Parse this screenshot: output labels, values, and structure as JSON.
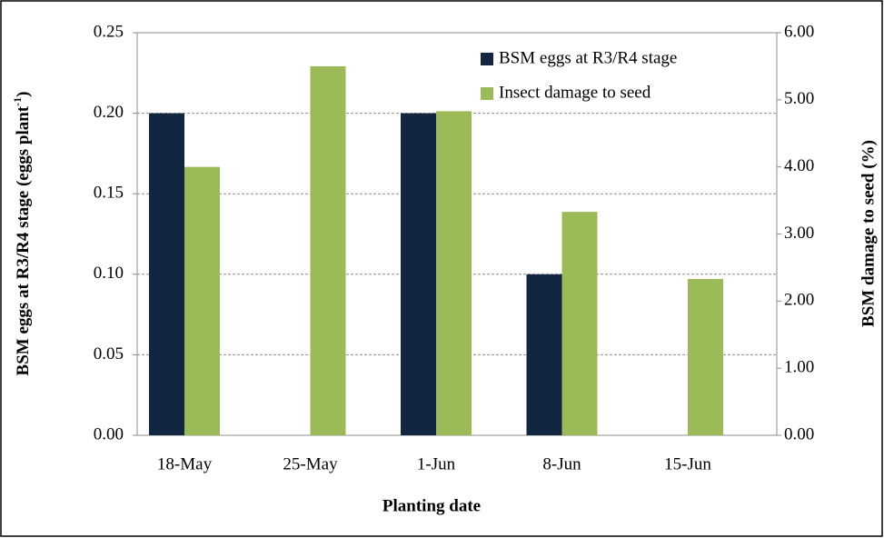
{
  "chart_data": {
    "type": "bar",
    "x_label": "Planting date",
    "y_label": "BSM eggs at R3/R4 stage (eggs plant",
    "y_label_sup": "-1",
    "y_label_end": ")",
    "y2_label": "BSM damage to seed (%)",
    "categories": [
      "18-May",
      "25-May",
      "1-Jun",
      "8-Jun",
      "15-Jun"
    ],
    "series": [
      {
        "name": "BSM eggs at R3/R4 stage",
        "color": "#132641",
        "values": [
          0.2,
          0,
          0.2,
          0.1,
          0
        ]
      },
      {
        "name": "Insect damage to seed",
        "color": "#9bbb59",
        "axis": "y2",
        "values": [
          4.0,
          5.5,
          4.83,
          3.33,
          2.33
        ]
      }
    ],
    "ylim": [
      0,
      0.25
    ],
    "yticks": [
      {
        "value": 0,
        "label": "0.00"
      },
      {
        "value": 0.05,
        "label": "0.05"
      },
      {
        "value": 0.1,
        "label": "0.10"
      },
      {
        "value": 0.15,
        "label": "0.15"
      },
      {
        "value": 0.2,
        "label": "0.20"
      },
      {
        "value": 0.25,
        "label": "0.25"
      }
    ],
    "y2lim": [
      0,
      6
    ],
    "y2ticks": [
      {
        "value": 0,
        "label": "0.00"
      },
      {
        "value": 1,
        "label": "1.00"
      },
      {
        "value": 2,
        "label": "2.00"
      },
      {
        "value": 3,
        "label": "3.00"
      },
      {
        "value": 4,
        "label": "4.00"
      },
      {
        "value": 5,
        "label": "5.00"
      },
      {
        "value": 6,
        "label": "6.00"
      }
    ],
    "grid": true,
    "legend": "upper right"
  }
}
